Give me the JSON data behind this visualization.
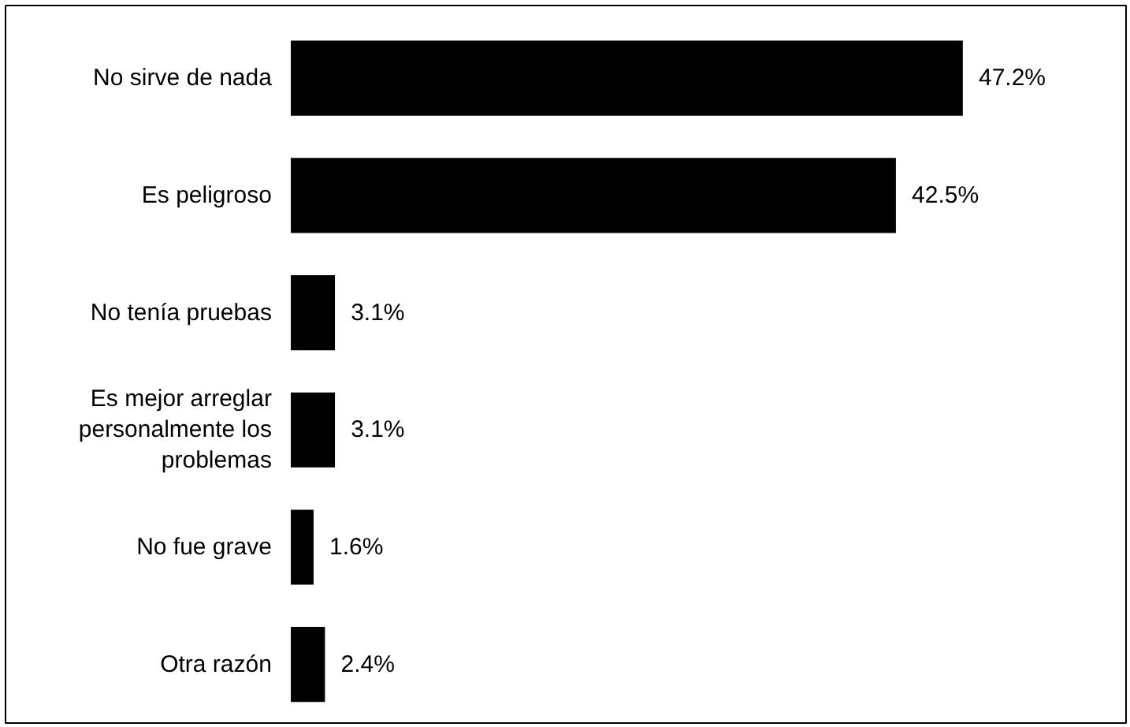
{
  "chart_data": {
    "type": "bar",
    "orientation": "horizontal",
    "data_labels": true,
    "categories": [
      "No sirve de nada",
      "Es peligroso",
      "No tenía pruebas",
      "Es mejor arreglar personalmente los problemas",
      "No fue grave",
      "Otra razón"
    ],
    "values": [
      47.2,
      42.5,
      3.1,
      3.1,
      1.6,
      2.4
    ],
    "value_labels": [
      "47.2%",
      "42.5%",
      "3.1%",
      "3.1%",
      "1.6%",
      "2.4%"
    ],
    "color": "#000000"
  }
}
